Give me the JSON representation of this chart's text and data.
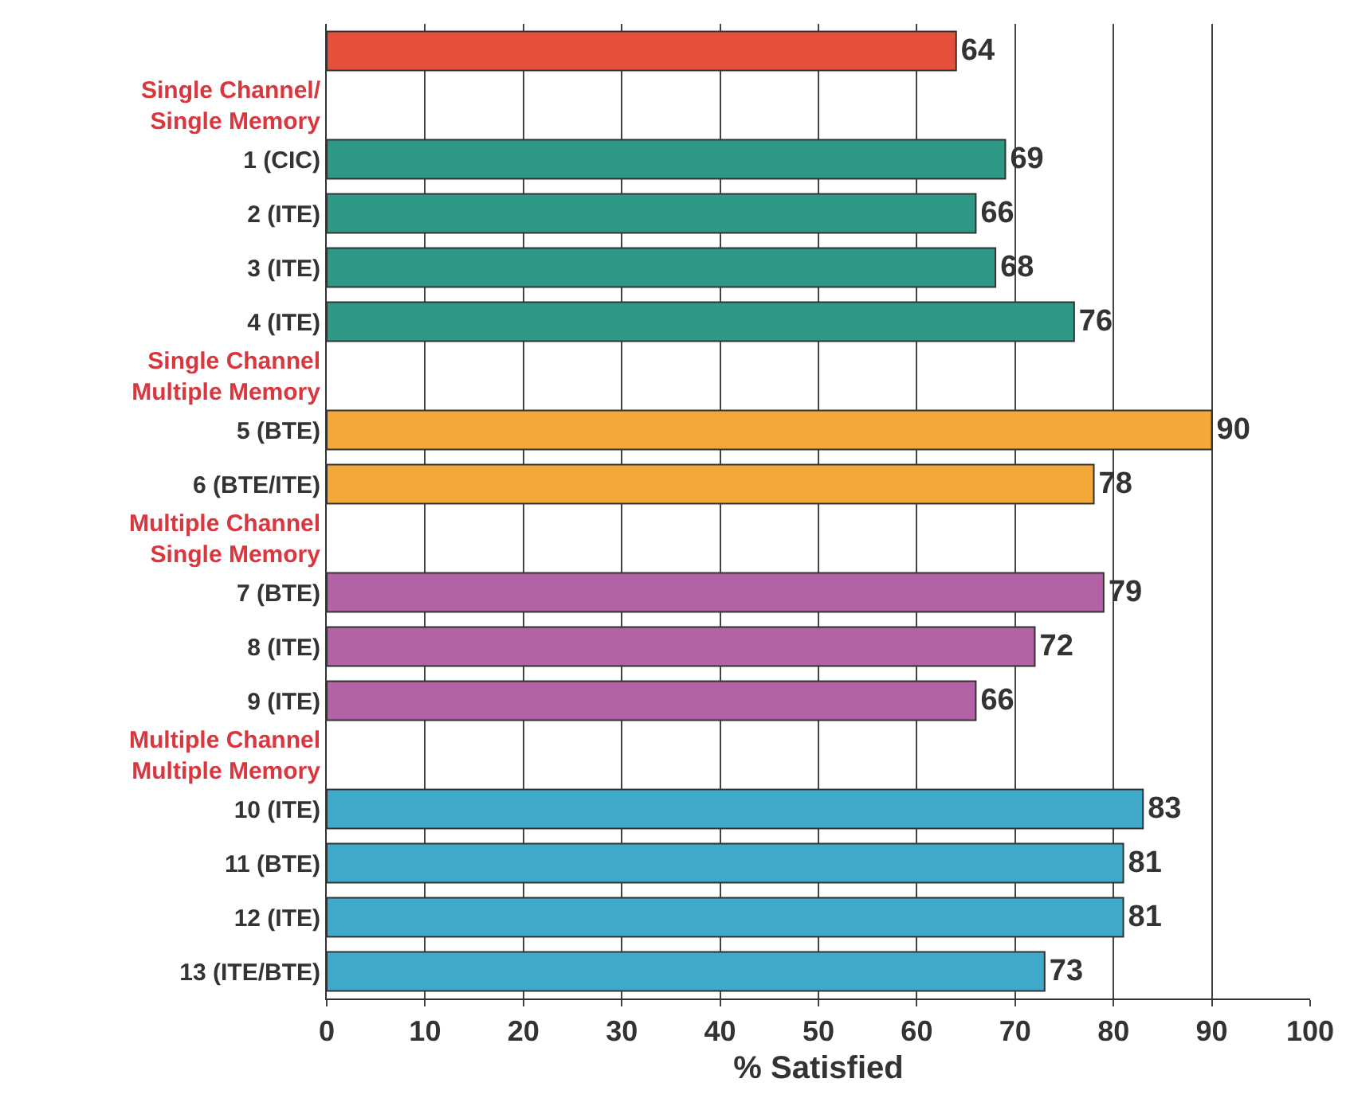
{
  "chart_data": {
    "type": "bar",
    "orientation": "horizontal",
    "xlabel": "% Satisfied",
    "categories": [
      null,
      "Single Channel/\nSingle Memory",
      "1 (CIC)",
      "2 (ITE)",
      "3 (ITE)",
      "4 (ITE)",
      "Single Channel\nMultiple Memory",
      "5 (BTE)",
      "6 (BTE/ITE)",
      "Multiple Channel\nSingle Memory",
      "7 (BTE)",
      "8 (ITE)",
      "9 (ITE)",
      "Multiple Channel\nMultiple Memory",
      "10 (ITE)",
      "11 (BTE)",
      "12 (ITE)",
      "13 (ITE/BTE)"
    ],
    "values": [
      64,
      null,
      69,
      66,
      68,
      76,
      null,
      90,
      78,
      null,
      79,
      72,
      66,
      null,
      83,
      81,
      81,
      73
    ],
    "colors": [
      "#e4503a",
      null,
      "#2e9a86",
      "#2e9a86",
      "#2e9a86",
      "#2e9a86",
      null,
      "#f2a83a",
      "#f2a83a",
      null,
      "#b462a6",
      "#b462a6",
      "#b462a6",
      null,
      "#3fa9c9",
      "#3fa9c9",
      "#3fa9c9",
      "#3fa9c9"
    ],
    "xlim": [
      0,
      100
    ],
    "xticks": [
      0,
      10,
      20,
      30,
      40,
      50,
      60,
      70,
      80,
      90,
      100
    ],
    "grid": "x",
    "data_labels": true
  }
}
